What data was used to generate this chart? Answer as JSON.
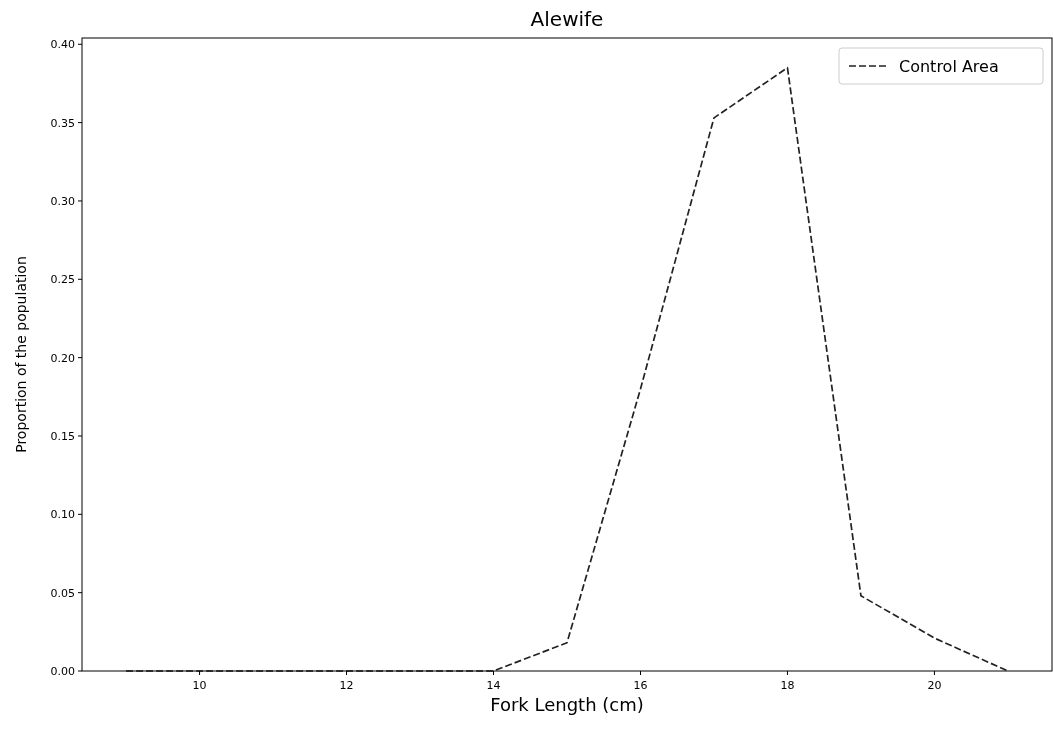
{
  "chart_data": {
    "type": "line",
    "title": "Alewife",
    "xlabel": "Fork Length (cm)",
    "ylabel": "Proportion of the population",
    "x": [
      9,
      10,
      11,
      12,
      13,
      14,
      15,
      16,
      17,
      18,
      19,
      20,
      21
    ],
    "series": [
      {
        "name": "Control Area",
        "color": "#222222",
        "values": [
          0,
          0,
          0,
          0,
          0,
          0,
          0.018,
          0.18,
          0.353,
          0.385,
          0.048,
          0.021,
          0
        ]
      }
    ],
    "xlim": [
      8.4,
      21.6
    ],
    "ylim": [
      0,
      0.404
    ],
    "xticks": [
      10,
      12,
      14,
      16,
      18,
      20
    ],
    "yticks": [
      {
        "value": 0,
        "label": "0.00"
      },
      {
        "value": 0.05,
        "label": "0.05"
      },
      {
        "value": 0.1,
        "label": "0.10"
      },
      {
        "value": 0.15,
        "label": "0.15"
      },
      {
        "value": 0.2,
        "label": "0.20"
      },
      {
        "value": 0.25,
        "label": "0.25"
      },
      {
        "value": 0.3,
        "label": "0.30"
      },
      {
        "value": 0.35,
        "label": "0.35"
      },
      {
        "value": 0.4,
        "label": "0.40"
      }
    ],
    "legend": "top right",
    "line_style": "dashed",
    "grid": false
  }
}
